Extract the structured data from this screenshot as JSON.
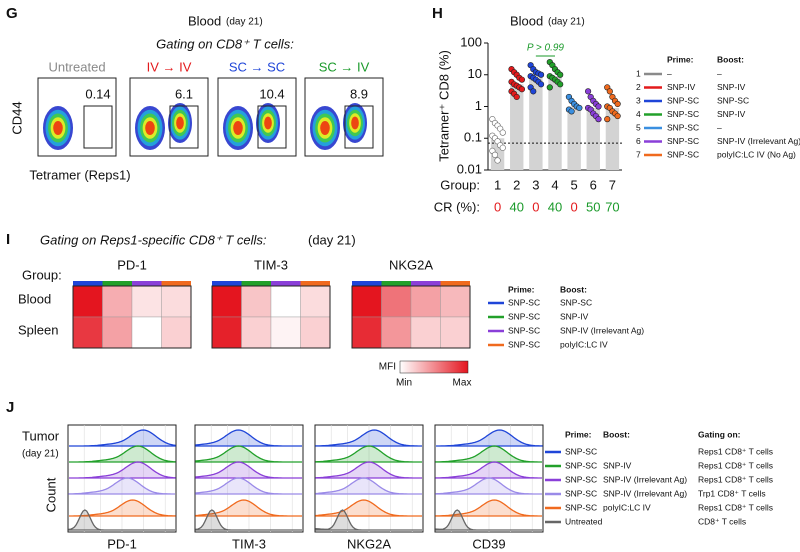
{
  "panel_g": {
    "label": "G",
    "title": "Blood",
    "title_note": "(day 21)",
    "subtitle": "Gating on CD8⁺ T cells:",
    "ylabel": "CD44",
    "xlabel": "Tetramer (Reps1)",
    "plots": [
      {
        "label": "Untreated",
        "color": "#8a8a8a",
        "gate_value": 0.14
      },
      {
        "label": "IV → IV",
        "color": "#e31a1c",
        "gate_value": 6.1
      },
      {
        "label": "SC → SC",
        "color": "#1f45d8",
        "gate_value": 10.4
      },
      {
        "label": "SC → IV",
        "color": "#1a9a2a",
        "gate_value": 8.9
      }
    ]
  },
  "chart_data": {
    "type": "bar",
    "label": "H",
    "title": "Blood",
    "title_note": "(day 21)",
    "ylabel": "Tetramer⁺ CD8 (%)",
    "categories": [
      "1",
      "2",
      "3",
      "4",
      "5",
      "6",
      "7"
    ],
    "group_label": "Group:",
    "values": [
      0.1,
      5,
      8,
      9,
      1,
      0.9,
      0.9
    ],
    "bar_color": "#d3d3d3",
    "points": [
      [
        0.4,
        0.3,
        0.25,
        0.2,
        0.15,
        0.12,
        0.1,
        0.08,
        0.06,
        0.05,
        0.04,
        0.03,
        0.02
      ],
      [
        15,
        12,
        10,
        8,
        7,
        6,
        5,
        4.5,
        4,
        3.5,
        3,
        2.5,
        2
      ],
      [
        20,
        15,
        12,
        11,
        10,
        9,
        8,
        7,
        6,
        5,
        4,
        3
      ],
      [
        25,
        20,
        15,
        12,
        10,
        9,
        8,
        7,
        6,
        5,
        4
      ],
      [
        2,
        1.5,
        1.2,
        1,
        0.9,
        0.8,
        0.7
      ],
      [
        3,
        2,
        1.5,
        1.2,
        1,
        0.9,
        0.8,
        0.6,
        0.5,
        0.4
      ],
      [
        4,
        3,
        2,
        1.5,
        1.2,
        1,
        0.9,
        0.7,
        0.6,
        0.5,
        0.4
      ]
    ],
    "point_colors": [
      "#ffffff",
      "#e31a1c",
      "#1f45d8",
      "#22a02a",
      "#3a8fe0",
      "#8a3fd8",
      "#f06a1e"
    ],
    "cr_label": "CR (%):",
    "cr": [
      0,
      40,
      0,
      40,
      0,
      50,
      70
    ],
    "cr_colors": [
      "#e31a1c",
      "#1a9a2a",
      "#e31a1c",
      "#1a9a2a",
      "#e31a1c",
      "#1a9a2a",
      "#1a9a2a"
    ],
    "ylim": [
      0.01,
      100
    ],
    "yticks": [
      0.01,
      0.1,
      1,
      10,
      100
    ],
    "log_scale": true,
    "detection_limit": 0.07,
    "annotation": {
      "text": "P > 0.99",
      "color": "#1a9a2a"
    },
    "legend": {
      "headers": [
        "Prime:",
        "Boost:"
      ],
      "rows": [
        {
          "group": "1",
          "color": "#8a8a8a",
          "prime": "–",
          "boost": "–"
        },
        {
          "group": "2",
          "color": "#e31a1c",
          "prime": "SNP-IV",
          "boost": "SNP-IV"
        },
        {
          "group": "3",
          "color": "#1f45d8",
          "prime": "SNP-SC",
          "boost": "SNP-SC"
        },
        {
          "group": "4",
          "color": "#22a02a",
          "prime": "SNP-SC",
          "boost": "SNP-IV"
        },
        {
          "group": "5",
          "color": "#3a8fe0",
          "prime": "SNP-SC",
          "boost": "–"
        },
        {
          "group": "6",
          "color": "#8a3fd8",
          "prime": "SNP-SC",
          "boost": "SNP-IV (Irrelevant Ag)"
        },
        {
          "group": "7",
          "color": "#f06a1e",
          "prime": "SNP-SC",
          "boost": "polyIC:LC IV (No Ag)"
        }
      ]
    }
  },
  "panel_i": {
    "label": "I",
    "subtitle": "Gating on Reps1-specific CD8⁺ T cells:",
    "subtitle_note": "(day 21)",
    "group_label": "Group:",
    "group_colors": [
      "#1f45d8",
      "#22a02a",
      "#8a3fd8",
      "#f06a1e"
    ],
    "rows": [
      "Blood",
      "Spleen"
    ],
    "heatmaps": [
      {
        "title": "PD-1",
        "values": [
          [
            1.0,
            0.35,
            0.12,
            0.15
          ],
          [
            0.85,
            0.4,
            0.0,
            0.2
          ]
        ]
      },
      {
        "title": "TIM-3",
        "values": [
          [
            1.0,
            0.25,
            0.0,
            0.15
          ],
          [
            0.95,
            0.2,
            0.05,
            0.2
          ]
        ]
      },
      {
        "title": "NKG2A",
        "values": [
          [
            1.0,
            0.6,
            0.4,
            0.3
          ],
          [
            0.9,
            0.45,
            0.2,
            0.2
          ]
        ]
      }
    ],
    "colorbar": {
      "title": "MFI",
      "min_label": "Min",
      "max_label": "Max",
      "min_color": "#ffffff",
      "max_color": "#e4151f"
    },
    "legend": {
      "headers": [
        "Prime:",
        "Boost:"
      ],
      "rows": [
        {
          "color": "#1f45d8",
          "prime": "SNP-SC",
          "boost": "SNP-SC"
        },
        {
          "color": "#22a02a",
          "prime": "SNP-SC",
          "boost": "SNP-IV"
        },
        {
          "color": "#8a3fd8",
          "prime": "SNP-SC",
          "boost": "SNP-IV (Irrelevant Ag)"
        },
        {
          "color": "#f06a1e",
          "prime": "SNP-SC",
          "boost": "polyIC:LC IV"
        }
      ]
    }
  },
  "panel_j": {
    "label": "J",
    "title": "Tumor",
    "title_note": "(day 21)",
    "ylabel": "Count",
    "markers": [
      {
        "name": "PD-1",
        "peaks": [
          0.7,
          0.65,
          0.65,
          0.55,
          0.6,
          0.15
        ]
      },
      {
        "name": "TIM-3",
        "peaks": [
          0.4,
          0.4,
          0.4,
          0.4,
          0.45,
          0.15
        ]
      },
      {
        "name": "NKG2A",
        "peaks": [
          0.55,
          0.5,
          0.5,
          0.45,
          0.45,
          0.25
        ]
      },
      {
        "name": "CD39",
        "peaks": [
          0.6,
          0.55,
          0.55,
          0.5,
          0.55,
          0.2
        ]
      }
    ],
    "legend": {
      "headers": [
        "Prime:",
        "Boost:",
        "Gating on:"
      ],
      "rows": [
        {
          "color": "#1f45d8",
          "prime": "SNP-SC",
          "gating": "Reps1 CD8⁺ T cells"
        },
        {
          "color": "#22a02a",
          "prime": "SNP-SC",
          "boost": "SNP-IV",
          "gating": "Reps1 CD8⁺ T cells"
        },
        {
          "color": "#8a3fd8",
          "prime": "SNP-SC",
          "boost": "SNP-IV (Irrelevant Ag)",
          "gating": "Reps1 CD8⁺ T cells"
        },
        {
          "color": "#9a8ae8",
          "prime": "SNP-SC",
          "boost": "SNP-IV (Irrelevant Ag)",
          "gating": "Trp1 CD8⁺ T cells"
        },
        {
          "color": "#f06a1e",
          "prime": "SNP-SC",
          "boost": "polyIC:LC IV",
          "gating": "Reps1 CD8⁺ T cells"
        },
        {
          "color": "#666666",
          "prime": "Untreated",
          "gating": "CD8⁺ T cells"
        }
      ]
    }
  }
}
